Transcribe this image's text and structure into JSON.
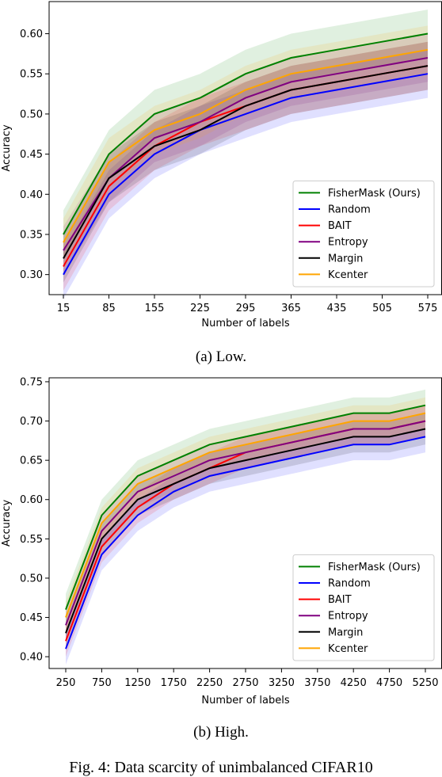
{
  "captions": {
    "a": "(a) Low.",
    "b": "(b) High.",
    "figure": "Fig. 4: Data scarcity of unimbalanced CIFAR10"
  },
  "chart_data": [
    {
      "type": "line",
      "xlabel": "Number of labels",
      "ylabel": "Accuracy",
      "x": [
        15,
        85,
        155,
        225,
        295,
        365,
        435,
        505,
        575
      ],
      "xticks": [
        "15",
        "85",
        "155",
        "225",
        "295",
        "365",
        "435",
        "505",
        "575"
      ],
      "yticks": [
        "0.30",
        "0.35",
        "0.40",
        "0.45",
        "0.50",
        "0.55",
        "0.60"
      ],
      "ylim": [
        0.275,
        0.64
      ],
      "legend_position": "lower right",
      "series": [
        {
          "name": "FisherMask (Ours)",
          "color": "#008000",
          "values": [
            0.35,
            0.45,
            0.5,
            0.52,
            0.55,
            0.57,
            0.58,
            0.59,
            0.6
          ],
          "band": 0.03
        },
        {
          "name": "Random",
          "color": "#0000ff",
          "values": [
            0.3,
            0.4,
            0.45,
            0.48,
            0.5,
            0.52,
            0.53,
            0.54,
            0.55
          ],
          "band": 0.03
        },
        {
          "name": "BAIT",
          "color": "#ff0000",
          "values": [
            0.31,
            0.41,
            0.46,
            0.49,
            0.51,
            0.53,
            0.54,
            0.55,
            0.56
          ],
          "band": 0.03
        },
        {
          "name": "Entropy",
          "color": "#800080",
          "values": [
            0.33,
            0.42,
            0.47,
            0.49,
            0.52,
            0.54,
            0.55,
            0.56,
            0.57
          ],
          "band": 0.03
        },
        {
          "name": "Margin",
          "color": "#000000",
          "values": [
            0.32,
            0.42,
            0.46,
            0.48,
            0.51,
            0.53,
            0.54,
            0.55,
            0.56
          ],
          "band": 0.03
        },
        {
          "name": "Kcenter",
          "color": "#ffa500",
          "values": [
            0.34,
            0.44,
            0.48,
            0.5,
            0.53,
            0.55,
            0.56,
            0.57,
            0.58
          ],
          "band": 0.03
        }
      ]
    },
    {
      "type": "line",
      "xlabel": "Number of labels",
      "ylabel": "Accuracy",
      "x": [
        250,
        750,
        1250,
        1750,
        2250,
        2750,
        3250,
        3750,
        4250,
        4750,
        5250
      ],
      "xticks": [
        "250",
        "750",
        "1250",
        "1750",
        "2250",
        "2750",
        "3250",
        "3750",
        "4250",
        "4750",
        "5250"
      ],
      "yticks": [
        "0.40",
        "0.45",
        "0.50",
        "0.55",
        "0.60",
        "0.65",
        "0.70",
        "0.75"
      ],
      "ylim": [
        0.385,
        0.755
      ],
      "legend_position": "lower right",
      "series": [
        {
          "name": "FisherMask (Ours)",
          "color": "#008000",
          "values": [
            0.46,
            0.58,
            0.63,
            0.65,
            0.67,
            0.68,
            0.69,
            0.7,
            0.71,
            0.71,
            0.72
          ],
          "band": 0.02
        },
        {
          "name": "Random",
          "color": "#0000ff",
          "values": [
            0.41,
            0.53,
            0.58,
            0.61,
            0.63,
            0.64,
            0.65,
            0.66,
            0.67,
            0.67,
            0.68
          ],
          "band": 0.02
        },
        {
          "name": "BAIT",
          "color": "#ff0000",
          "values": [
            0.42,
            0.54,
            0.59,
            0.62,
            0.64,
            0.66,
            0.67,
            0.68,
            0.69,
            0.69,
            0.7
          ],
          "band": 0.02
        },
        {
          "name": "Entropy",
          "color": "#800080",
          "values": [
            0.44,
            0.56,
            0.61,
            0.63,
            0.65,
            0.66,
            0.67,
            0.68,
            0.69,
            0.69,
            0.7
          ],
          "band": 0.02
        },
        {
          "name": "Margin",
          "color": "#000000",
          "values": [
            0.43,
            0.55,
            0.6,
            0.62,
            0.64,
            0.65,
            0.66,
            0.67,
            0.68,
            0.68,
            0.69
          ],
          "band": 0.02
        },
        {
          "name": "Kcenter",
          "color": "#ffa500",
          "values": [
            0.45,
            0.57,
            0.62,
            0.64,
            0.66,
            0.67,
            0.68,
            0.69,
            0.7,
            0.7,
            0.71
          ],
          "band": 0.02
        }
      ]
    }
  ]
}
